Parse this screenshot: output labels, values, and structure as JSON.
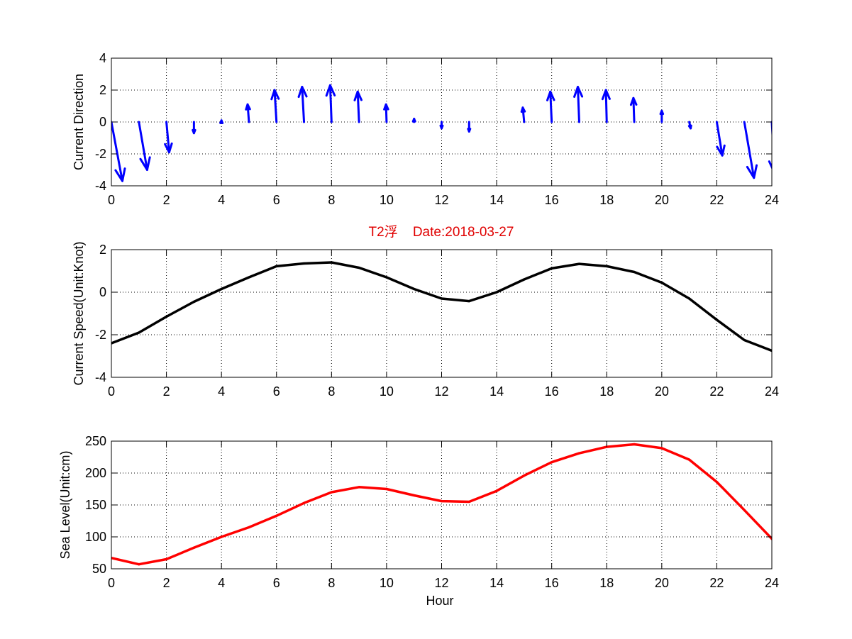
{
  "title": "T2浮    Date:2018-03-27",
  "colors": {
    "title": "#e00000",
    "direction": "#0000ff",
    "speed": "#000000",
    "sea_level": "#ff0000",
    "axes": "#000000",
    "grid": "#000000"
  },
  "chart_data": [
    {
      "type": "quiver",
      "title": "",
      "xlabel": "",
      "ylabel": "Current Direction",
      "xlim": [
        0,
        24
      ],
      "ylim": [
        -4,
        4
      ],
      "xticks": [
        0,
        2,
        4,
        6,
        8,
        10,
        12,
        14,
        16,
        18,
        20,
        22,
        24
      ],
      "yticks": [
        -4,
        -2,
        0,
        2,
        4
      ],
      "grid": true,
      "series": [
        {
          "x": [
            0,
            1,
            2,
            3,
            4,
            5,
            6,
            7,
            8,
            9,
            10,
            11,
            12,
            13,
            14,
            15,
            16,
            17,
            18,
            19,
            20,
            21,
            22,
            23,
            24
          ],
          "u": [
            0.4,
            0.3,
            0.1,
            0.0,
            0.0,
            -0.05,
            -0.07,
            -0.07,
            -0.05,
            -0.05,
            -0.02,
            0.0,
            0.0,
            0.0,
            0.0,
            -0.05,
            -0.05,
            -0.05,
            -0.03,
            -0.03,
            0.0,
            0.05,
            0.2,
            0.35,
            0.1
          ],
          "v": [
            -3.7,
            -3.0,
            -1.9,
            -0.7,
            0.1,
            1.1,
            2.0,
            2.2,
            2.3,
            1.9,
            1.1,
            0.2,
            -0.4,
            -0.6,
            0.0,
            0.9,
            1.9,
            2.2,
            2.0,
            1.5,
            0.7,
            -0.4,
            -2.1,
            -3.5,
            -3.2
          ]
        }
      ]
    },
    {
      "type": "line",
      "title": "",
      "xlabel": "",
      "ylabel": "Current Speed(Unit:Knot)",
      "xlim": [
        0,
        24
      ],
      "ylim": [
        -4,
        2
      ],
      "xticks": [
        0,
        2,
        4,
        6,
        8,
        10,
        12,
        14,
        16,
        18,
        20,
        22,
        24
      ],
      "yticks": [
        -4,
        -2,
        0,
        2
      ],
      "grid": true,
      "series": [
        {
          "x": [
            0,
            1,
            2,
            3,
            4,
            5,
            6,
            7,
            8,
            9,
            10,
            11,
            12,
            13,
            14,
            15,
            16,
            17,
            18,
            19,
            20,
            21,
            22,
            23,
            24
          ],
          "values": [
            -2.4,
            -1.9,
            -1.15,
            -0.45,
            0.15,
            0.7,
            1.22,
            1.35,
            1.4,
            1.15,
            0.7,
            0.15,
            -0.3,
            -0.42,
            0.0,
            0.6,
            1.12,
            1.33,
            1.22,
            0.95,
            0.45,
            -0.3,
            -1.3,
            -2.25,
            -2.75
          ]
        }
      ]
    },
    {
      "type": "line",
      "title": "",
      "xlabel": "Hour",
      "ylabel": "Sea Level(Unit:cm)",
      "xlim": [
        0,
        24
      ],
      "ylim": [
        50,
        250
      ],
      "xticks": [
        0,
        2,
        4,
        6,
        8,
        10,
        12,
        14,
        16,
        18,
        20,
        22,
        24
      ],
      "yticks": [
        50,
        100,
        150,
        200,
        250
      ],
      "grid": true,
      "series": [
        {
          "x": [
            0,
            1,
            2,
            3,
            4,
            5,
            6,
            7,
            8,
            9,
            10,
            11,
            12,
            13,
            14,
            15,
            16,
            17,
            18,
            19,
            20,
            21,
            22,
            23,
            24
          ],
          "values": [
            67,
            57,
            65,
            83,
            100,
            115,
            133,
            153,
            170,
            178,
            175,
            165,
            156,
            155,
            172,
            196,
            217,
            231,
            241,
            245,
            239,
            221,
            186,
            142,
            97
          ]
        }
      ]
    }
  ]
}
